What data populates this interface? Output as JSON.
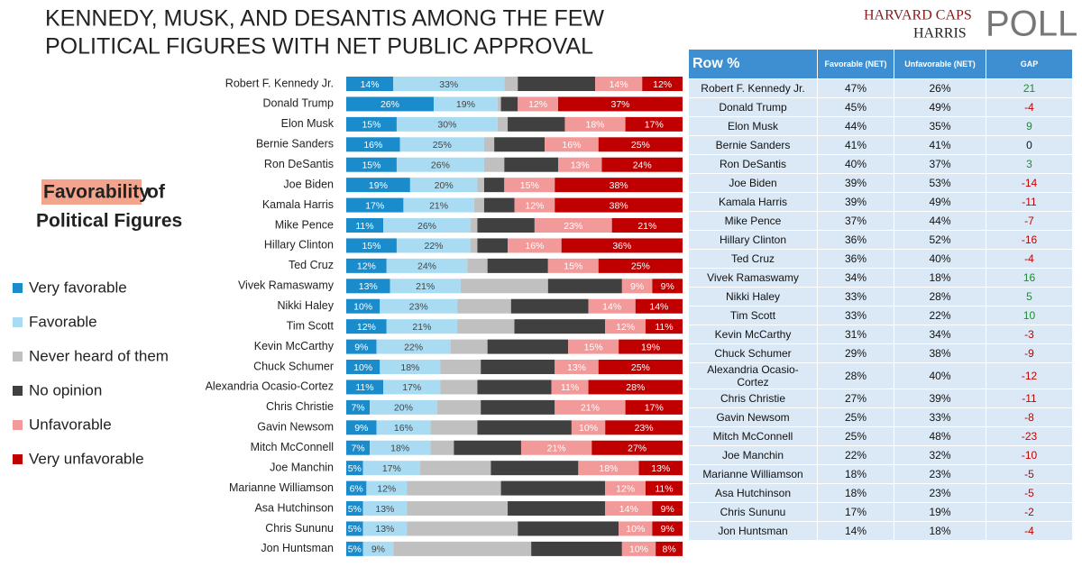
{
  "chart_data": {
    "type": "bar",
    "orientation": "horizontal",
    "stacked": true,
    "title": [
      "KENNEDY, MUSK, AND DESANTIS AMONG THE FEW",
      "POLITICAL FIGURES WITH NET PUBLIC APPROVAL"
    ],
    "logo": [
      "HARVARD CAPS",
      "HARRIS",
      "POLL"
    ],
    "heading": {
      "highlight": "Favorability",
      "rest": "of",
      "line2": "Political Figures"
    },
    "xlim": [
      0,
      100
    ],
    "categories": [
      "Robert F. Kennedy Jr.",
      "Donald Trump",
      "Elon Musk",
      "Bernie Sanders",
      "Ron DeSantis",
      "Joe Biden",
      "Kamala Harris",
      "Mike Pence",
      "Hillary Clinton",
      "Ted Cruz",
      "Vivek Ramaswamy",
      "Nikki Haley",
      "Tim Scott",
      "Kevin McCarthy",
      "Chuck Schumer",
      "Alexandria Ocasio-Cortez",
      "Chris Christie",
      "Gavin Newsom",
      "Mitch McConnell",
      "Joe Manchin",
      "Marianne Williamson",
      "Asa Hutchinson",
      "Chris Sununu",
      "Jon Huntsman"
    ],
    "series": [
      {
        "name": "Very favorable",
        "color": "#1a8ccc",
        "label_color": "#ffffff",
        "values": [
          14,
          26,
          15,
          16,
          15,
          19,
          17,
          11,
          15,
          12,
          13,
          10,
          12,
          9,
          10,
          11,
          7,
          9,
          7,
          5,
          6,
          5,
          5,
          5
        ],
        "value_labels": [
          "14%",
          "26%",
          "15%",
          "16%",
          "15%",
          "19%",
          "17%",
          "11%",
          "15%",
          "12%",
          "13%",
          "10%",
          "12%",
          "9%",
          "10%",
          "11%",
          "7%",
          "9%",
          "7%",
          "5%",
          "6%",
          "5%",
          "5%",
          "5%"
        ]
      },
      {
        "name": "Favorable",
        "color": "#a9dcf3",
        "label_color": "#444444",
        "values": [
          33,
          19,
          30,
          25,
          26,
          20,
          21,
          26,
          22,
          24,
          21,
          23,
          21,
          22,
          18,
          17,
          20,
          16,
          18,
          17,
          12,
          13,
          13,
          9
        ],
        "value_labels": [
          "33%",
          "19%",
          "30%",
          "25%",
          "26%",
          "20%",
          "21%",
          "26%",
          "22%",
          "24%",
          "21%",
          "23%",
          "21%",
          "22%",
          "18%",
          "17%",
          "20%",
          "16%",
          "18%",
          "17%",
          "12%",
          "13%",
          "13%",
          "9%"
        ]
      },
      {
        "name": "Never heard of them",
        "color": "#c0c0c0",
        "values": [
          4,
          1,
          3,
          3,
          6,
          2,
          3,
          2,
          2,
          6,
          26,
          16,
          17,
          11,
          12,
          11,
          13,
          14,
          7,
          21,
          28,
          30,
          33,
          41
        ]
      },
      {
        "name": "No opinion",
        "color": "#404040",
        "values": [
          23,
          5,
          17,
          15,
          16,
          6,
          9,
          17,
          9,
          18,
          22,
          23,
          27,
          24,
          22,
          22,
          22,
          28,
          20,
          26,
          31,
          29,
          30,
          27
        ]
      },
      {
        "name": "Unfavorable",
        "color": "#f29a9a",
        "label_color": "#ffffff",
        "values": [
          14,
          12,
          18,
          16,
          13,
          15,
          12,
          23,
          16,
          15,
          9,
          14,
          12,
          15,
          13,
          11,
          21,
          10,
          21,
          18,
          12,
          14,
          10,
          10
        ],
        "value_labels": [
          "14%",
          "12%",
          "18%",
          "16%",
          "13%",
          "15%",
          "12%",
          "23%",
          "16%",
          "15%",
          "9%",
          "14%",
          "12%",
          "15%",
          "13%",
          "11%",
          "21%",
          "10%",
          "21%",
          "18%",
          "12%",
          "14%",
          "10%",
          "10%"
        ]
      },
      {
        "name": "Very unfavorable",
        "color": "#c00000",
        "label_color": "#ffffff",
        "values": [
          12,
          37,
          17,
          25,
          24,
          38,
          38,
          21,
          36,
          25,
          9,
          14,
          11,
          19,
          25,
          28,
          17,
          23,
          27,
          13,
          11,
          9,
          9,
          8
        ],
        "value_labels": [
          "12%",
          "37%",
          "17%",
          "25%",
          "24%",
          "38%",
          "38%",
          "21%",
          "36%",
          "25%",
          "9%",
          "14%",
          "11%",
          "19%",
          "25%",
          "28%",
          "17%",
          "23%",
          "27%",
          "13%",
          "11%",
          "9%",
          "9%",
          "8%"
        ]
      }
    ]
  },
  "table": {
    "header": [
      "Row %",
      "Favorable (NET)",
      "Unfavorable (NET)",
      "GAP"
    ],
    "rows": [
      [
        "Robert F. Kennedy Jr.",
        "47%",
        "26%",
        "21"
      ],
      [
        "Donald Trump",
        "45%",
        "49%",
        "-4"
      ],
      [
        "Elon Musk",
        "44%",
        "35%",
        "9"
      ],
      [
        "Bernie Sanders",
        "41%",
        "41%",
        "0"
      ],
      [
        "Ron DeSantis",
        "40%",
        "37%",
        "3"
      ],
      [
        "Joe Biden",
        "39%",
        "53%",
        "-14"
      ],
      [
        "Kamala Harris",
        "39%",
        "49%",
        "-11"
      ],
      [
        "Mike Pence",
        "37%",
        "44%",
        "-7"
      ],
      [
        "Hillary Clinton",
        "36%",
        "52%",
        "-16"
      ],
      [
        "Ted Cruz",
        "36%",
        "40%",
        "-4"
      ],
      [
        "Vivek Ramaswamy",
        "34%",
        "18%",
        "16"
      ],
      [
        "Nikki Haley",
        "33%",
        "28%",
        "5"
      ],
      [
        "Tim Scott",
        "33%",
        "22%",
        "10"
      ],
      [
        "Kevin McCarthy",
        "31%",
        "34%",
        "-3"
      ],
      [
        "Chuck Schumer",
        "29%",
        "38%",
        "-9"
      ],
      [
        "Alexandria Ocasio-Cortez",
        "28%",
        "40%",
        "-12"
      ],
      [
        "Chris Christie",
        "27%",
        "39%",
        "-11"
      ],
      [
        "Gavin Newsom",
        "25%",
        "33%",
        "-8"
      ],
      [
        "Mitch McConnell",
        "25%",
        "48%",
        "-23"
      ],
      [
        "Joe Manchin",
        "22%",
        "32%",
        "-10"
      ],
      [
        "Marianne Williamson",
        "18%",
        "23%",
        "-5"
      ],
      [
        "Asa Hutchinson",
        "18%",
        "23%",
        "-5"
      ],
      [
        "Chris Sununu",
        "17%",
        "19%",
        "-2"
      ],
      [
        "Jon Huntsman",
        "14%",
        "18%",
        "-4"
      ]
    ]
  }
}
